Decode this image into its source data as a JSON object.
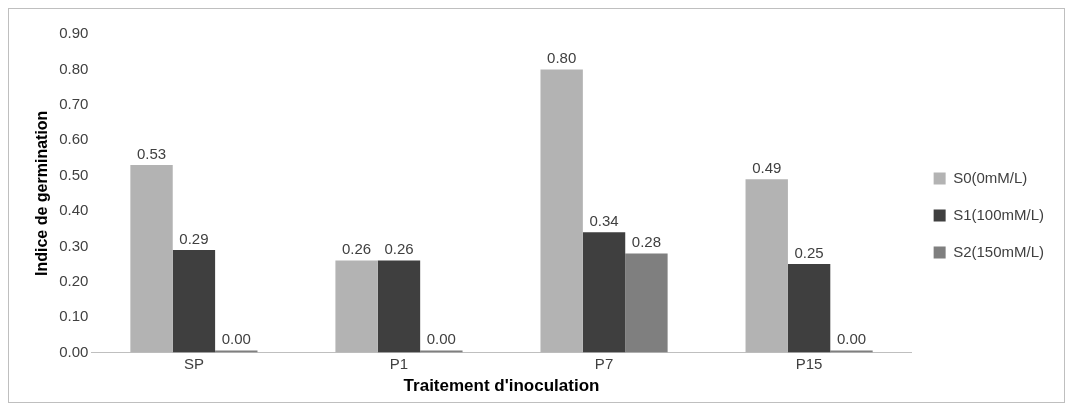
{
  "chart_data": {
    "type": "bar",
    "xlabel": "Traitement d'inoculation",
    "ylabel": "Indice de germination",
    "categories": [
      "SP",
      "P1",
      "P7",
      "P15"
    ],
    "series": [
      {
        "name": "S0(0mM/L)",
        "color": "#b3b3b3",
        "values": [
          0.53,
          0.26,
          0.8,
          0.49
        ],
        "value_labels": [
          "0.53",
          "0.26",
          "0.80",
          "0.49"
        ]
      },
      {
        "name": "S1(100mM/L)",
        "color": "#3f3f3f",
        "values": [
          0.29,
          0.26,
          0.34,
          0.25
        ],
        "value_labels": [
          "0.29",
          "0.26",
          "0.34",
          "0.25"
        ]
      },
      {
        "name": "S2(150mM/L)",
        "color": "#7f7f7f",
        "values": [
          0.0,
          0.0,
          0.28,
          0.0
        ],
        "value_labels": [
          "0.00",
          "0.00",
          "0.28",
          "0.00"
        ]
      }
    ],
    "ylim": [
      0,
      0.9
    ],
    "yticks": [
      {
        "value": 0,
        "label": "0.00"
      },
      {
        "value": 0.1,
        "label": "0.10"
      },
      {
        "value": 0.2,
        "label": "0.20"
      },
      {
        "value": 0.3,
        "label": "0.30"
      },
      {
        "value": 0.4,
        "label": "0.40"
      },
      {
        "value": 0.5,
        "label": "0.50"
      },
      {
        "value": 0.6,
        "label": "0.60"
      },
      {
        "value": 0.7,
        "label": "0.70"
      },
      {
        "value": 0.8,
        "label": "0.80"
      },
      {
        "value": 0.9,
        "label": "0.90"
      }
    ],
    "grid": false,
    "legend": "right"
  }
}
